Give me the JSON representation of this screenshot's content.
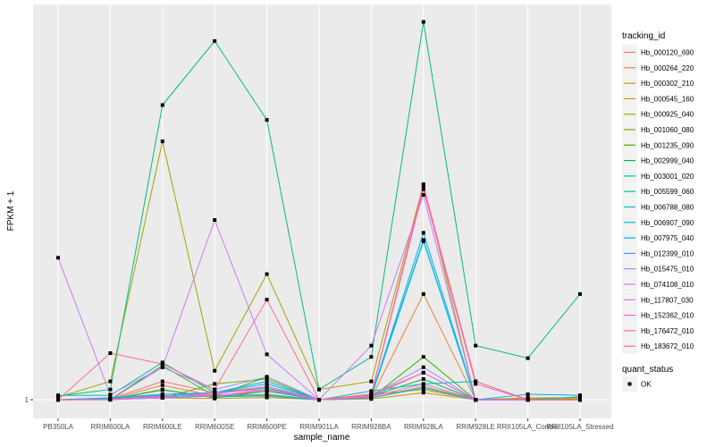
{
  "chart_data": {
    "type": "line",
    "title": "",
    "xlabel": "sample_name",
    "ylabel": "FPKM + 1",
    "y_scale": "log10",
    "y_ticks": [
      1
    ],
    "y_tick_labels": [
      "1"
    ],
    "ylim": [
      0.62,
      25000
    ],
    "grid": true,
    "legend_position": "right",
    "categories": [
      "PB350LA",
      "RRIM600LA",
      "RRIM600LE",
      "RRIM600SE",
      "RRIM600PE",
      "RRIM901LA",
      "RRIM928BA",
      "RRIM928LA",
      "RRIM928LE",
      "RRII105LA_Control",
      "RRII105LA_Stressed"
    ],
    "legend_title": "tracking_id",
    "shape_legend_title": "quant_status",
    "shape_legend_items": [
      "OK"
    ],
    "series": [
      {
        "name": "Hb_000120_690",
        "color": "#F8766D",
        "values": [
          1,
          1.02,
          1.6,
          1.2,
          1.4,
          1,
          1.15,
          2.0,
          1,
          1,
          1
        ]
      },
      {
        "name": "Hb_000264_220",
        "color": "#EA8331",
        "values": [
          1,
          1.01,
          1.45,
          1.1,
          1.25,
          1,
          1.05,
          15,
          1,
          1,
          1
        ]
      },
      {
        "name": "Hb_000302_210",
        "color": "#D89000",
        "values": [
          1,
          1.01,
          1.28,
          1.08,
          1.12,
          1,
          1.15,
          1.3,
          1,
          1.05,
          1.05
        ]
      },
      {
        "name": "Hb_000545_160",
        "color": "#C09B00",
        "values": [
          1,
          1,
          1.05,
          1.03,
          1.06,
          1,
          1.02,
          1.2,
          1,
          1.02,
          1.02
        ]
      },
      {
        "name": "Hb_000925_040",
        "color": "#A3A500",
        "values": [
          1.07,
          1.6,
          750,
          2.1,
          25,
          1.3,
          1.6,
          250,
          1,
          1.02,
          1.02
        ]
      },
      {
        "name": "Hb_001060_080",
        "color": "#7CAE00",
        "values": [
          1,
          1.01,
          1.05,
          1.5,
          1.7,
          1,
          1.05,
          1.4,
          1,
          1,
          1
        ]
      },
      {
        "name": "Hb_001235_090",
        "color": "#39B600",
        "values": [
          1,
          1.01,
          2.4,
          1.1,
          1.8,
          1,
          1.05,
          3.0,
          1,
          1,
          1
        ]
      },
      {
        "name": "Hb_002999_040",
        "color": "#00BB4E",
        "values": [
          1,
          1.01,
          1.3,
          1.05,
          1.25,
          1,
          1.1,
          1.7,
          1,
          1,
          1
        ]
      },
      {
        "name": "Hb_003001_020",
        "color": "#00BF7D",
        "values": [
          1.1,
          1.3,
          1900,
          9800,
          1300,
          1.3,
          3.0,
          16000,
          4.0,
          2.9,
          15
        ]
      },
      {
        "name": "Hb_005599_060",
        "color": "#00C1A3",
        "values": [
          1.12,
          1.12,
          2.6,
          1.2,
          1.35,
          1,
          1.25,
          1.5,
          1.6,
          1,
          1.08
        ]
      },
      {
        "name": "Hb_006788_080",
        "color": "#00BFC4",
        "values": [
          1,
          1.05,
          1.12,
          1.08,
          1.1,
          1,
          1.12,
          60,
          1,
          1,
          1
        ]
      },
      {
        "name": "Hb_006907_090",
        "color": "#00BAE0",
        "values": [
          1,
          1.02,
          1.1,
          1.2,
          1.5,
          1,
          1.08,
          58,
          1,
          1,
          1
        ]
      },
      {
        "name": "Hb_007975_040",
        "color": "#00B0F6",
        "values": [
          1,
          1.05,
          1.15,
          1.2,
          1.6,
          1,
          1.1,
          72,
          1,
          1.15,
          1.12
        ]
      },
      {
        "name": "Hb_012399_010",
        "color": "#35A2FF",
        "values": [
          1,
          1.01,
          1.05,
          1.1,
          1.15,
          1,
          1.05,
          1.35,
          1,
          1,
          1
        ]
      },
      {
        "name": "Hb_015475_010",
        "color": "#9590FF",
        "values": [
          1,
          1,
          2.3,
          1.3,
          1.8,
          1,
          1.12,
          2.3,
          1,
          1,
          1
        ]
      },
      {
        "name": "Hb_074108_010",
        "color": "#C77CFF",
        "values": [
          38,
          1.14,
          2.3,
          100,
          3.2,
          1,
          4.0,
          190,
          1,
          1,
          1
        ]
      },
      {
        "name": "Hb_117807_030",
        "color": "#E76BF3",
        "values": [
          1,
          1.01,
          1.05,
          1.2,
          1.3,
          1,
          1.08,
          1.5,
          1,
          1,
          1
        ]
      },
      {
        "name": "Hb_152362_010",
        "color": "#FA62DB",
        "values": [
          1,
          1.01,
          1.08,
          1.15,
          1.4,
          1,
          1.1,
          2.0,
          1,
          1,
          1
        ]
      },
      {
        "name": "Hb_176472_010",
        "color": "#FF62BC",
        "values": [
          1,
          1.01,
          1.1,
          1.1,
          1.3,
          1,
          1.12,
          220,
          1.5,
          1,
          1
        ]
      },
      {
        "name": "Hb_183672_010",
        "color": "#FF6C91",
        "values": [
          1,
          3.3,
          2.5,
          1.3,
          13,
          1,
          1.15,
          240,
          1.6,
          1,
          1
        ]
      }
    ]
  }
}
